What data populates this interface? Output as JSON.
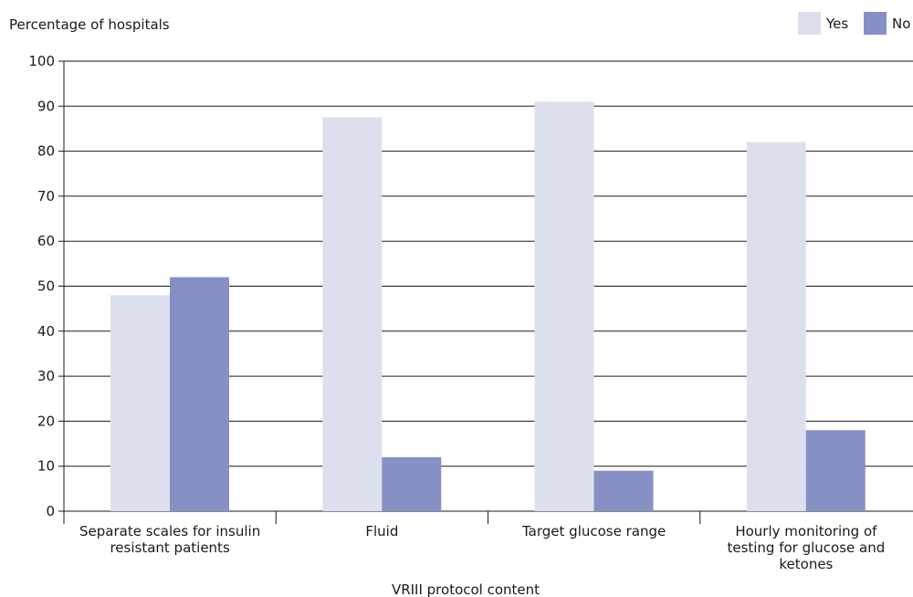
{
  "chart_data": {
    "type": "bar",
    "ylabel": "Percentage of hospitals",
    "xlabel": "VRIII protocol content",
    "ylim": [
      0,
      100
    ],
    "yticks": [
      0,
      10,
      20,
      30,
      40,
      50,
      60,
      70,
      80,
      90,
      100
    ],
    "grid": true,
    "legend_position": "top-right",
    "categories": [
      [
        "Separate scales for insulin",
        "resistant patients"
      ],
      [
        "Fluid"
      ],
      [
        "Target glucose range"
      ],
      [
        "Hourly monitoring of",
        "testing for glucose and",
        "ketones"
      ]
    ],
    "series": [
      {
        "name": "Yes",
        "color": "#dcdfee",
        "values": [
          48,
          87.5,
          91,
          82
        ]
      },
      {
        "name": "No",
        "color": "#8790c4",
        "values": [
          52,
          12,
          9,
          18
        ]
      }
    ]
  }
}
